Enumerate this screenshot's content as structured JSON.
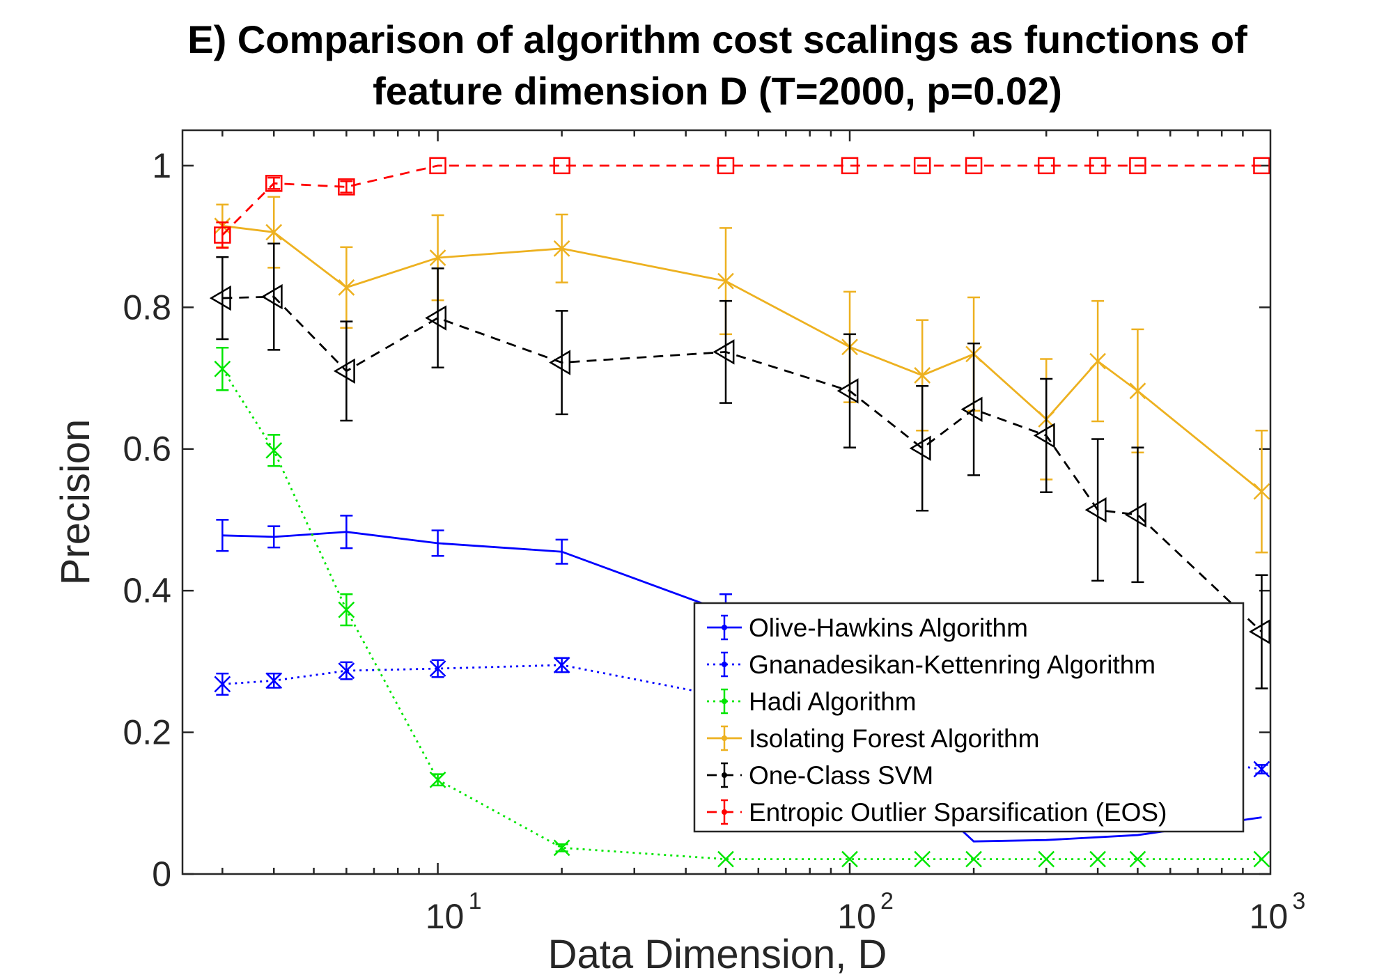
{
  "chart_data": {
    "type": "line",
    "title": "E) Comparison of algorithm cost scalings as functions of",
    "subtitle": "feature dimension D  (T=2000, p=0.02)",
    "xlabel": "Data Dimension, D",
    "ylabel": "Precision",
    "xscale": "log",
    "xlim": [
      2.4,
      1050
    ],
    "ylim": [
      0,
      1.05
    ],
    "xticks": [
      10,
      100,
      1000
    ],
    "xtick_labels": [
      {
        "base": "10",
        "exp": "1"
      },
      {
        "base": "10",
        "exp": "2"
      },
      {
        "base": "10",
        "exp": "3"
      }
    ],
    "yticks": [
      0,
      0.2,
      0.4,
      0.6,
      0.8,
      1
    ],
    "ytick_labels": [
      "0",
      "0.2",
      "0.4",
      "0.6",
      "0.8",
      "1"
    ],
    "grid": false,
    "legend_position": "lower-right",
    "series": [
      {
        "name": "Olive-Hawkins Algorithm",
        "color": "#0000ff",
        "line_style": "solid",
        "marker": "none",
        "x": [
          3,
          4,
          6,
          10,
          20,
          50,
          200,
          300,
          500,
          1000
        ],
        "y": [
          0.478,
          0.476,
          0.483,
          0.467,
          0.455,
          0.37,
          0.046,
          0.048,
          0.055,
          0.08
        ],
        "err": [
          0.022,
          0.015,
          0.023,
          0.018,
          0.017,
          0.025,
          0,
          0,
          0,
          0
        ]
      },
      {
        "name": "Gnanadesikan-Kettenring Algorithm",
        "color": "#0000ff",
        "line_style": "dotted",
        "marker": "x",
        "x": [
          3,
          4,
          6,
          10,
          20,
          50,
          1000
        ],
        "y": [
          0.268,
          0.273,
          0.287,
          0.29,
          0.295,
          0.25,
          0.148
        ],
        "err": [
          0.015,
          0.01,
          0.012,
          0.012,
          0.01,
          0,
          0.006
        ]
      },
      {
        "name": "Hadi Algorithm",
        "color": "#00e600",
        "line_style": "dotted",
        "marker": "x",
        "x": [
          3,
          4,
          6,
          10,
          20,
          50,
          100,
          150,
          200,
          300,
          400,
          500,
          1000
        ],
        "y": [
          0.713,
          0.598,
          0.373,
          0.133,
          0.037,
          0.021,
          0.021,
          0.021,
          0.021,
          0.021,
          0.021,
          0.021,
          0.021
        ],
        "err": [
          0.03,
          0.022,
          0.022,
          0.008,
          0.005,
          0,
          0,
          0,
          0,
          0,
          0,
          0,
          0
        ]
      },
      {
        "name": "Isolating Forest Algorithm",
        "color": "#edb120",
        "line_style": "solid",
        "marker": "x",
        "x": [
          3,
          4,
          6,
          10,
          20,
          50,
          100,
          150,
          200,
          300,
          400,
          500,
          1000
        ],
        "y": [
          0.915,
          0.906,
          0.828,
          0.87,
          0.883,
          0.837,
          0.744,
          0.704,
          0.734,
          0.642,
          0.724,
          0.682,
          0.54
        ],
        "err": [
          0.03,
          0.05,
          0.057,
          0.06,
          0.048,
          0.075,
          0.078,
          0.078,
          0.08,
          0.085,
          0.085,
          0.087,
          0.086
        ]
      },
      {
        "name": "One-Class SVM",
        "color": "#000000",
        "line_style": "dashed",
        "marker": "triangle-left",
        "x": [
          3,
          4,
          6,
          10,
          20,
          50,
          100,
          150,
          200,
          300,
          400,
          500,
          1000
        ],
        "y": [
          0.813,
          0.815,
          0.71,
          0.785,
          0.722,
          0.737,
          0.682,
          0.601,
          0.656,
          0.619,
          0.514,
          0.507,
          0.342
        ],
        "err": [
          0.058,
          0.075,
          0.07,
          0.07,
          0.073,
          0.072,
          0.08,
          0.088,
          0.093,
          0.08,
          0.1,
          0.095,
          0.08
        ]
      },
      {
        "name": "Entropic Outlier Sparsification (EOS)",
        "color": "#ff0000",
        "line_style": "dashed",
        "marker": "square",
        "x": [
          3,
          4,
          6,
          10,
          20,
          50,
          100,
          150,
          200,
          300,
          400,
          500,
          1000
        ],
        "y": [
          0.902,
          0.975,
          0.97,
          1,
          1,
          1,
          1,
          1,
          1,
          1,
          1,
          1,
          1
        ],
        "err": [
          0.018,
          0.008,
          0.008,
          0,
          0,
          0,
          0,
          0,
          0,
          0,
          0,
          0,
          0
        ]
      }
    ]
  }
}
